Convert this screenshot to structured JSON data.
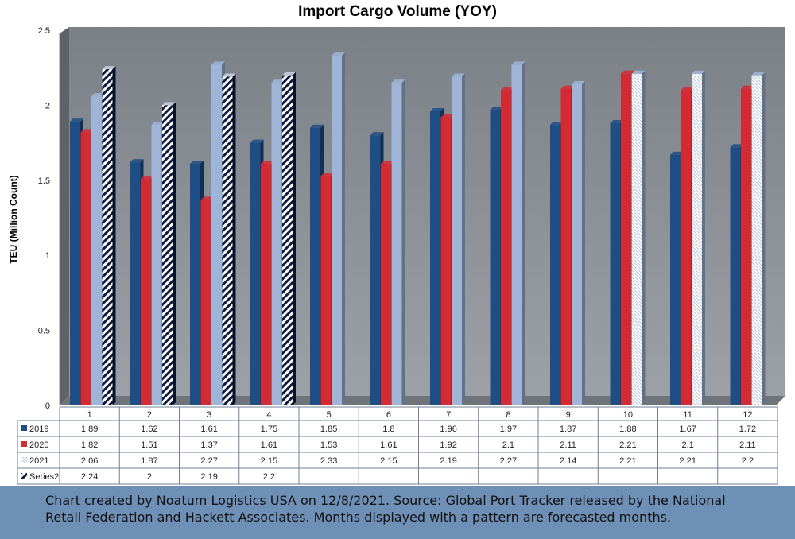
{
  "chart_data": {
    "type": "bar",
    "title": "Import Cargo Volume (YOY)",
    "ylabel": "TEU (Million Count)",
    "xlabel": "",
    "ylim": [
      0,
      2.5
    ],
    "yticks": [
      "0",
      "0.5",
      "1",
      "1.5",
      "2",
      "2.5"
    ],
    "categories": [
      "1",
      "2",
      "3",
      "4",
      "5",
      "6",
      "7",
      "8",
      "9",
      "10",
      "11",
      "12"
    ],
    "series": [
      {
        "name": "2019",
        "color": "#1f4e85",
        "pattern": "none",
        "values": [
          1.89,
          1.62,
          1.61,
          1.75,
          1.85,
          1.8,
          1.96,
          1.97,
          1.87,
          1.88,
          1.67,
          1.72
        ],
        "labels": [
          "1.89",
          "1.62",
          "1.61",
          "1.75",
          "1.85",
          "1.8",
          "1.96",
          "1.97",
          "1.87",
          "1.88",
          "1.67",
          "1.72"
        ]
      },
      {
        "name": "2020",
        "color": "#d42a33",
        "pattern": "none",
        "values": [
          1.82,
          1.51,
          1.37,
          1.61,
          1.53,
          1.61,
          1.92,
          2.1,
          2.11,
          2.21,
          2.1,
          2.11
        ],
        "labels": [
          "1.82",
          "1.51",
          "1.37",
          "1.61",
          "1.53",
          "1.61",
          "1.92",
          "2.1",
          "2.11",
          "2.21",
          "2.1",
          "2.11"
        ]
      },
      {
        "name": "2021",
        "color": "#9fb5d8",
        "pattern": "light-diagonal-on-forecast",
        "values": [
          2.06,
          1.87,
          2.27,
          2.15,
          2.33,
          2.15,
          2.19,
          2.27,
          2.14,
          2.21,
          2.21,
          2.2
        ],
        "labels": [
          "2.06",
          "1.87",
          "2.27",
          "2.15",
          "2.33",
          "2.15",
          "2.19",
          "2.27",
          "2.14",
          "2.21",
          "2.21",
          "2.2"
        ]
      },
      {
        "name": "Series2",
        "color": "#0f1b40",
        "pattern": "dark-diagonal-stripes",
        "values": [
          2.24,
          2,
          2.19,
          2.2,
          null,
          null,
          null,
          null,
          null,
          null,
          null,
          null
        ],
        "labels": [
          "2.24",
          "2",
          "2.19",
          "2.2",
          "",
          "",
          "",
          "",
          "",
          "",
          "",
          ""
        ]
      }
    ],
    "forecast_months_2021": [
      "10",
      "11",
      "12"
    ],
    "grid": false,
    "legend": "data-table-left",
    "wall_color": "#8a8f96"
  },
  "footer": {
    "note": "Chart created by Noatum Logistics USA on 12/8/2021. Source: Global Port Tracker released by the National Retail Federation and Hackett Associates. Months displayed with a pattern are forecasted months."
  }
}
